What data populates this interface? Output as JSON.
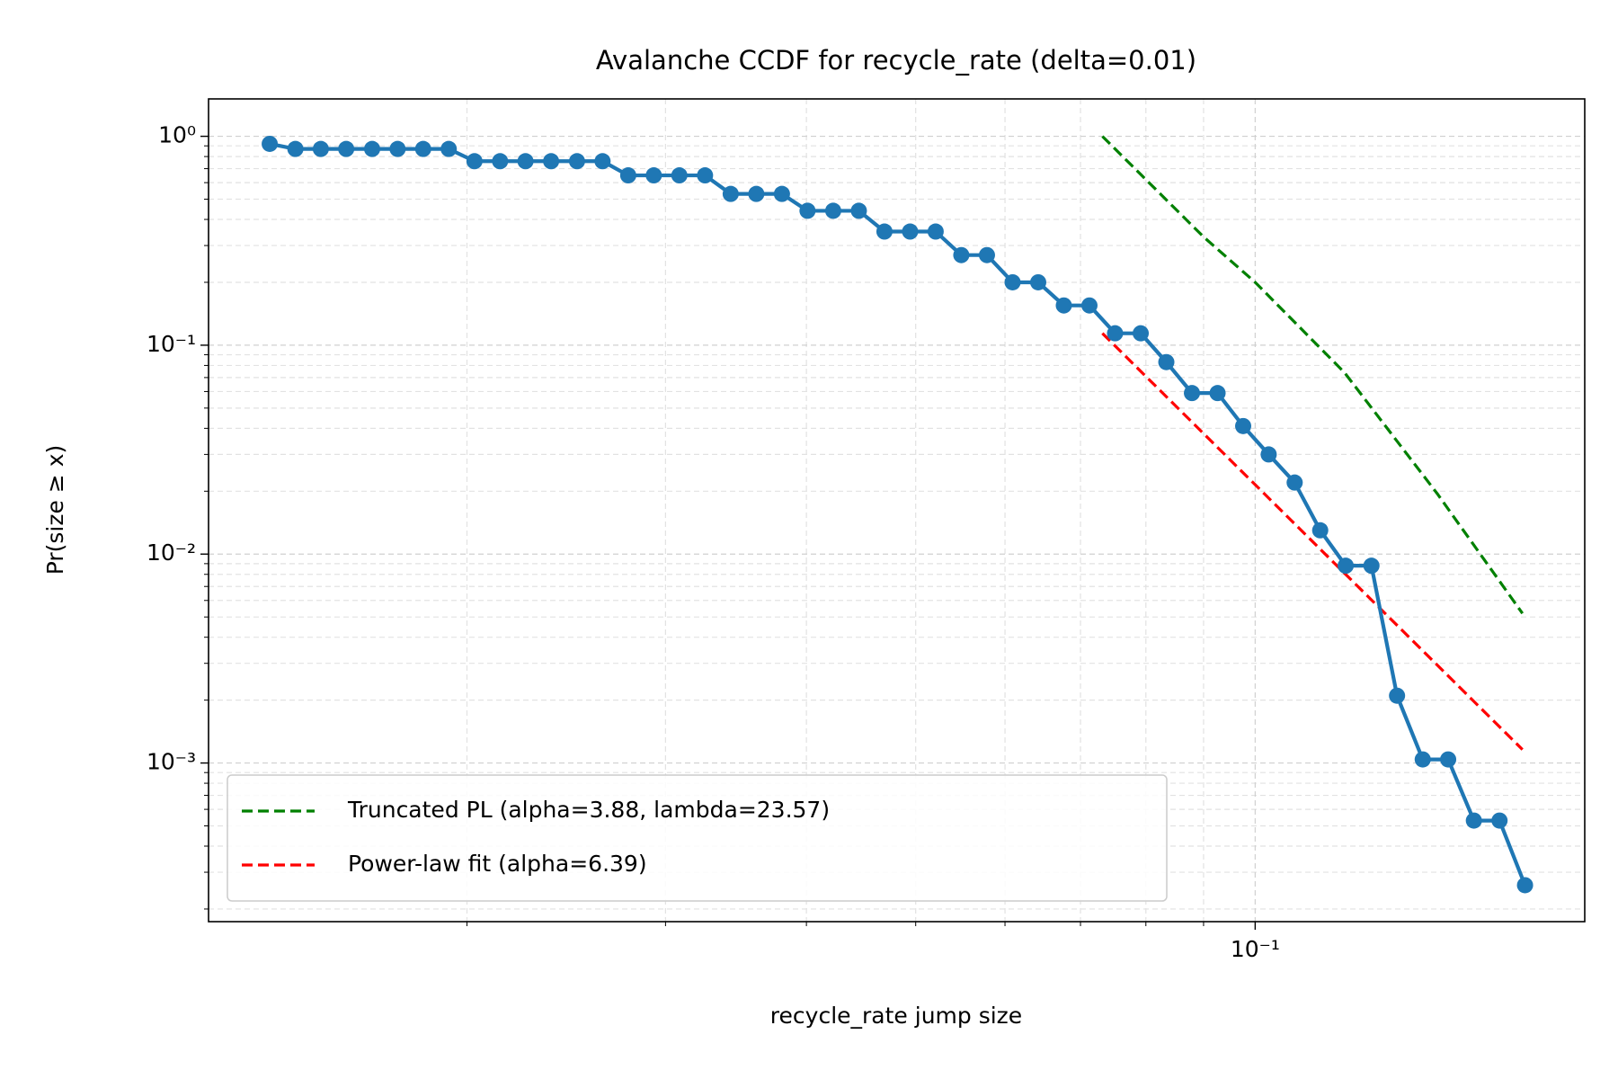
{
  "chart_data": {
    "type": "line",
    "title": "Avalanche CCDF for recycle_rate (delta=0.01)",
    "xlabel": "recycle_rate jump size",
    "ylabel": "Pr(size ≥ x)",
    "xscale": "log",
    "yscale": "log",
    "grid": true,
    "legend": "lower left",
    "xlim": [
      0.0118,
      0.196
    ],
    "ylim": [
      0.000174,
      1.51
    ],
    "xticks": [
      {
        "value": 0.1,
        "label": "10⁻¹"
      }
    ],
    "yticks": [
      {
        "value": 0.001,
        "label": "10⁻³"
      },
      {
        "value": 0.01,
        "label": "10⁻²"
      },
      {
        "value": 0.1,
        "label": "10⁻¹"
      },
      {
        "value": 1,
        "label": "10⁰"
      }
    ],
    "series": [
      {
        "name": "Truncated PL (alpha=3.88, lambda=23.57)",
        "color": "#008000",
        "linestyle": "dashed",
        "x": [
          0.0732,
          0.09,
          0.1,
          0.12,
          0.145,
          0.1726
        ],
        "values": [
          1.0,
          0.33,
          0.2,
          0.074,
          0.0195,
          0.0052
        ]
      },
      {
        "name": "Power-law fit (alpha=6.39)",
        "color": "#ff0000",
        "linestyle": "dashed",
        "x": [
          0.0732,
          0.1726
        ],
        "values": [
          0.114,
          0.00116
        ]
      },
      {
        "color": "#1f77b4",
        "linestyle": "solid",
        "marker": true,
        "x": [
          0.01337,
          0.01409,
          0.01484,
          0.01563,
          0.01648,
          0.01736,
          0.01829,
          0.01927,
          0.02031,
          0.0214,
          0.02254,
          0.02375,
          0.02504,
          0.02638,
          0.0278,
          0.02929,
          0.03086,
          0.03252,
          0.03427,
          0.03611,
          0.03805,
          0.04009,
          0.04225,
          0.04452,
          0.04691,
          0.04943,
          0.05208,
          0.05488,
          0.05783,
          0.06094,
          0.06421,
          0.06766,
          0.07129,
          0.07512,
          0.07916,
          0.08341,
          0.08789,
          0.09261,
          0.09758,
          0.1028,
          0.1084,
          0.1142,
          0.1203,
          0.1268,
          0.1336,
          0.1408,
          0.1483,
          0.1563,
          0.1647,
          0.1735
        ],
        "values": [
          0.92,
          0.87,
          0.87,
          0.87,
          0.87,
          0.87,
          0.87,
          0.87,
          0.76,
          0.76,
          0.76,
          0.76,
          0.76,
          0.76,
          0.65,
          0.65,
          0.65,
          0.65,
          0.53,
          0.53,
          0.53,
          0.44,
          0.44,
          0.44,
          0.35,
          0.35,
          0.35,
          0.27,
          0.27,
          0.2,
          0.2,
          0.155,
          0.155,
          0.114,
          0.114,
          0.083,
          0.059,
          0.059,
          0.041,
          0.03,
          0.022,
          0.013,
          0.0088,
          0.0088,
          0.0021,
          0.00104,
          0.00104,
          0.00053,
          0.00053,
          0.00026
        ]
      }
    ]
  }
}
